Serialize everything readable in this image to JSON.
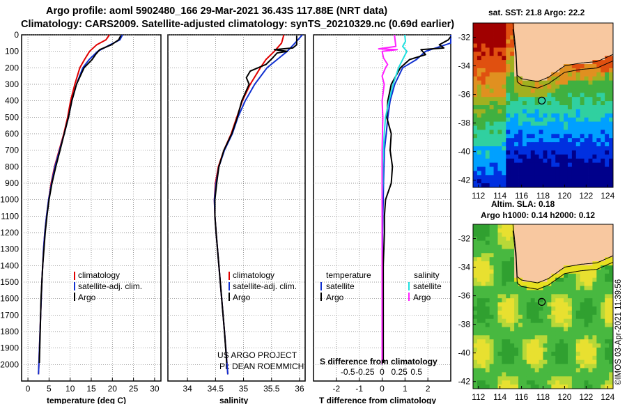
{
  "header": {
    "line1": "Argo profile: aoml 5902480_166 29-Mar-2021 36.43S 117.88E (NRT data)",
    "line2": "Climatology: CARS2009. Satellite-adjusted climatology: synTS_20210329.nc (0.69d earlier)"
  },
  "colors": {
    "climatology": "#e00000",
    "satellite": "#1030d0",
    "argo": "#000000",
    "sat_salinity": "#20e0e0",
    "argo_salinity": "#ff20ff",
    "land": "#f8c8a0"
  },
  "chart_data": [
    {
      "type": "line",
      "title": "",
      "xlabel": "temperature (deg C)",
      "ylabel": "",
      "xlim": [
        -1.5,
        31.5
      ],
      "ylim": [
        2100,
        0
      ],
      "xticks": [
        "0",
        "5",
        "10",
        "15",
        "20",
        "25",
        "30"
      ],
      "yticks": [
        "0",
        "100",
        "200",
        "300",
        "400",
        "500",
        "600",
        "700",
        "800",
        "900",
        "1000",
        "1100",
        "1200",
        "1300",
        "1400",
        "1500",
        "1600",
        "1700",
        "1800",
        "1900",
        "2000"
      ],
      "legend": [
        "climatology",
        "satellite-adj. clim.",
        "Argo"
      ],
      "series": [
        {
          "name": "climatology",
          "depth": [
            0,
            30,
            60,
            100,
            150,
            200,
            300,
            400,
            500,
            600,
            700,
            800,
            900,
            1000,
            1100,
            1200,
            1300,
            1400,
            1500,
            1700,
            2000,
            2060
          ],
          "values": [
            19.3,
            18.5,
            16.3,
            14.6,
            13.4,
            12.3,
            11.1,
            10.1,
            9.4,
            8.5,
            7.4,
            6.3,
            5.5,
            4.9,
            4.4,
            4.0,
            3.7,
            3.5,
            3.3,
            3.0,
            2.6,
            2.5
          ]
        },
        {
          "name": "satellite-adj. clim.",
          "depth": [
            0,
            30,
            60,
            100,
            150,
            200,
            300,
            400,
            500,
            600,
            700,
            800,
            900,
            1000,
            1100,
            1200,
            1300,
            1400,
            1500,
            1700,
            2000,
            2060
          ],
          "values": [
            22.4,
            21.8,
            19.5,
            16.5,
            14.5,
            13.0,
            11.5,
            10.4,
            9.6,
            8.6,
            7.5,
            6.4,
            5.6,
            4.9,
            4.4,
            4.0,
            3.7,
            3.5,
            3.3,
            3.0,
            2.6,
            2.5
          ]
        },
        {
          "name": "Argo",
          "depth": [
            5,
            30,
            60,
            90,
            120,
            150,
            200,
            250,
            300,
            400,
            500,
            600,
            700,
            800,
            900,
            1000,
            1100,
            1200,
            1400,
            1600,
            1800,
            1990
          ],
          "values": [
            22.0,
            21.5,
            19.8,
            17.0,
            16.0,
            15.2,
            13.3,
            12.4,
            11.5,
            10.4,
            9.6,
            8.6,
            7.6,
            6.6,
            5.7,
            5.0,
            4.5,
            4.1,
            3.5,
            3.1,
            2.9,
            2.7
          ]
        }
      ]
    },
    {
      "type": "line",
      "title": "",
      "xlabel": "salinity",
      "ylabel": "",
      "xlim": [
        33.65,
        36.1
      ],
      "ylim": [
        2100,
        0
      ],
      "xticks": [
        "34",
        "34.5",
        "35",
        "35.5",
        "36"
      ],
      "legend": [
        "climatology",
        "satellite-adj. clim.",
        "Argo"
      ],
      "annotations": [
        "US ARGO PROJECT",
        "PI: DEAN ROEMMICH"
      ],
      "series": [
        {
          "name": "climatology",
          "depth": [
            0,
            50,
            100,
            150,
            200,
            300,
            400,
            500,
            600,
            700,
            800,
            900,
            1000,
            1100,
            1200,
            1400,
            1600,
            1800,
            2060
          ],
          "values": [
            35.72,
            35.68,
            35.55,
            35.4,
            35.3,
            35.12,
            34.98,
            34.88,
            34.78,
            34.65,
            34.55,
            34.5,
            34.48,
            34.49,
            34.51,
            34.56,
            34.61,
            34.66,
            34.72
          ]
        },
        {
          "name": "satellite-adj. clim.",
          "depth": [
            0,
            50,
            100,
            150,
            200,
            300,
            400,
            500,
            600,
            700,
            800,
            900,
            1000,
            1100,
            1200,
            1400,
            1600,
            1800,
            2060
          ],
          "values": [
            36.05,
            35.92,
            35.78,
            35.6,
            35.42,
            35.2,
            35.03,
            34.9,
            34.8,
            34.66,
            34.56,
            34.51,
            34.48,
            34.49,
            34.51,
            34.56,
            34.61,
            34.66,
            34.72
          ]
        },
        {
          "name": "Argo",
          "depth": [
            5,
            60,
            80,
            90,
            100,
            110,
            140,
            180,
            220,
            260,
            300,
            400,
            500,
            600,
            700,
            800,
            900,
            1000,
            1100,
            1200,
            1400,
            1600,
            1800,
            1990
          ],
          "values": [
            35.95,
            35.95,
            35.88,
            35.55,
            35.78,
            35.6,
            35.52,
            35.4,
            35.12,
            35.05,
            35.1,
            34.97,
            34.89,
            34.79,
            34.65,
            34.56,
            34.52,
            34.49,
            34.49,
            34.51,
            34.56,
            34.61,
            34.66,
            34.7
          ]
        }
      ]
    },
    {
      "type": "line",
      "title": "",
      "xlabel": "T difference from climatology",
      "ylabel": "",
      "xlim": [
        -3.0,
        3.0
      ],
      "ylim": [
        2100,
        0
      ],
      "xticks": [
        "-2",
        "-1",
        "0",
        "1",
        "2"
      ],
      "top_axis_label": "S difference from climatology",
      "top_xticks": [
        "-0.5",
        "-0.25",
        "0",
        "0.25",
        "0.5"
      ],
      "legend": [
        "temperature",
        "satellite",
        "Argo",
        "salinity",
        "satellite",
        "Argo"
      ],
      "series": [
        {
          "name": "temperature satellite",
          "depth": [
            0,
            50,
            100,
            150,
            200,
            300,
            400,
            500,
            600,
            700,
            800,
            900,
            1000,
            1100,
            1200,
            1500,
            2000
          ],
          "values": [
            3.0,
            3.0,
            1.9,
            1.5,
            0.9,
            0.55,
            0.35,
            0.25,
            0.18,
            0.1,
            0.08,
            0.06,
            0.05,
            0.03,
            0.02,
            0.01,
            0.0
          ]
        },
        {
          "name": "temperature Argo",
          "depth": [
            10,
            30,
            60,
            80,
            90,
            120,
            150,
            200,
            300,
            400,
            500,
            600,
            700,
            800,
            900,
            1000,
            1100,
            1200,
            1400,
            1600,
            1800,
            1990
          ],
          "values": [
            3.0,
            2.9,
            2.5,
            2.7,
            1.7,
            1.9,
            1.2,
            0.8,
            0.4,
            0.25,
            0.2,
            0.4,
            0.35,
            0.45,
            0.4,
            0.15,
            0.1,
            0.1,
            0.05,
            0.05,
            0.05,
            0.05
          ]
        },
        {
          "name": "salinity satellite",
          "depth": [
            0,
            40,
            70,
            100,
            150,
            200,
            300,
            400,
            500,
            600,
            700,
            800,
            900,
            1000,
            1100,
            1200,
            1500,
            2000
          ],
          "values": [
            0.33,
            0.34,
            0.3,
            0.36,
            0.3,
            0.24,
            0.16,
            0.1,
            0.05,
            0.03,
            0.02,
            0.01,
            0.01,
            0.0,
            0.0,
            0.0,
            0.0,
            0.0
          ]
        },
        {
          "name": "salinity Argo",
          "depth": [
            0,
            70,
            85,
            90,
            100,
            140,
            180,
            200,
            250,
            300,
            400,
            500,
            700,
            900,
            1000,
            1200,
            1500,
            2000
          ],
          "values": [
            0.18,
            0.2,
            -0.05,
            0.22,
            0.0,
            0.02,
            0.08,
            0.05,
            0.0,
            0.03,
            0.0,
            0.01,
            0.0,
            0.0,
            0.0,
            0.0,
            0.0,
            0.0
          ]
        }
      ]
    },
    {
      "type": "heatmap",
      "title": "sat. SST: 21.8 Argo: 22.2",
      "xticks": [
        "112",
        "114",
        "116",
        "118",
        "120",
        "122",
        "124"
      ],
      "yticks": [
        "-32",
        "-34",
        "-36",
        "-38",
        "-40",
        "-42"
      ],
      "xlim": [
        111.5,
        124.5
      ],
      "ylim": [
        -42.5,
        -31.0
      ],
      "marker": {
        "lon": 117.88,
        "lat": -36.43
      }
    },
    {
      "type": "heatmap",
      "title": "Altim. SLA: 0.18",
      "subtitle": "Argo h1000: 0.14 h2000: 0.12",
      "xticks": [
        "112",
        "114",
        "116",
        "118",
        "120",
        "122",
        "124"
      ],
      "yticks": [
        "-32",
        "-34",
        "-36",
        "-38",
        "-40",
        "-42"
      ],
      "xlim": [
        111.5,
        124.5
      ],
      "ylim": [
        -42.5,
        -31.0
      ],
      "marker": {
        "lon": 117.88,
        "lat": -36.43
      }
    }
  ],
  "credit": "©IMOS 03-Apr-2021 11:39:56"
}
